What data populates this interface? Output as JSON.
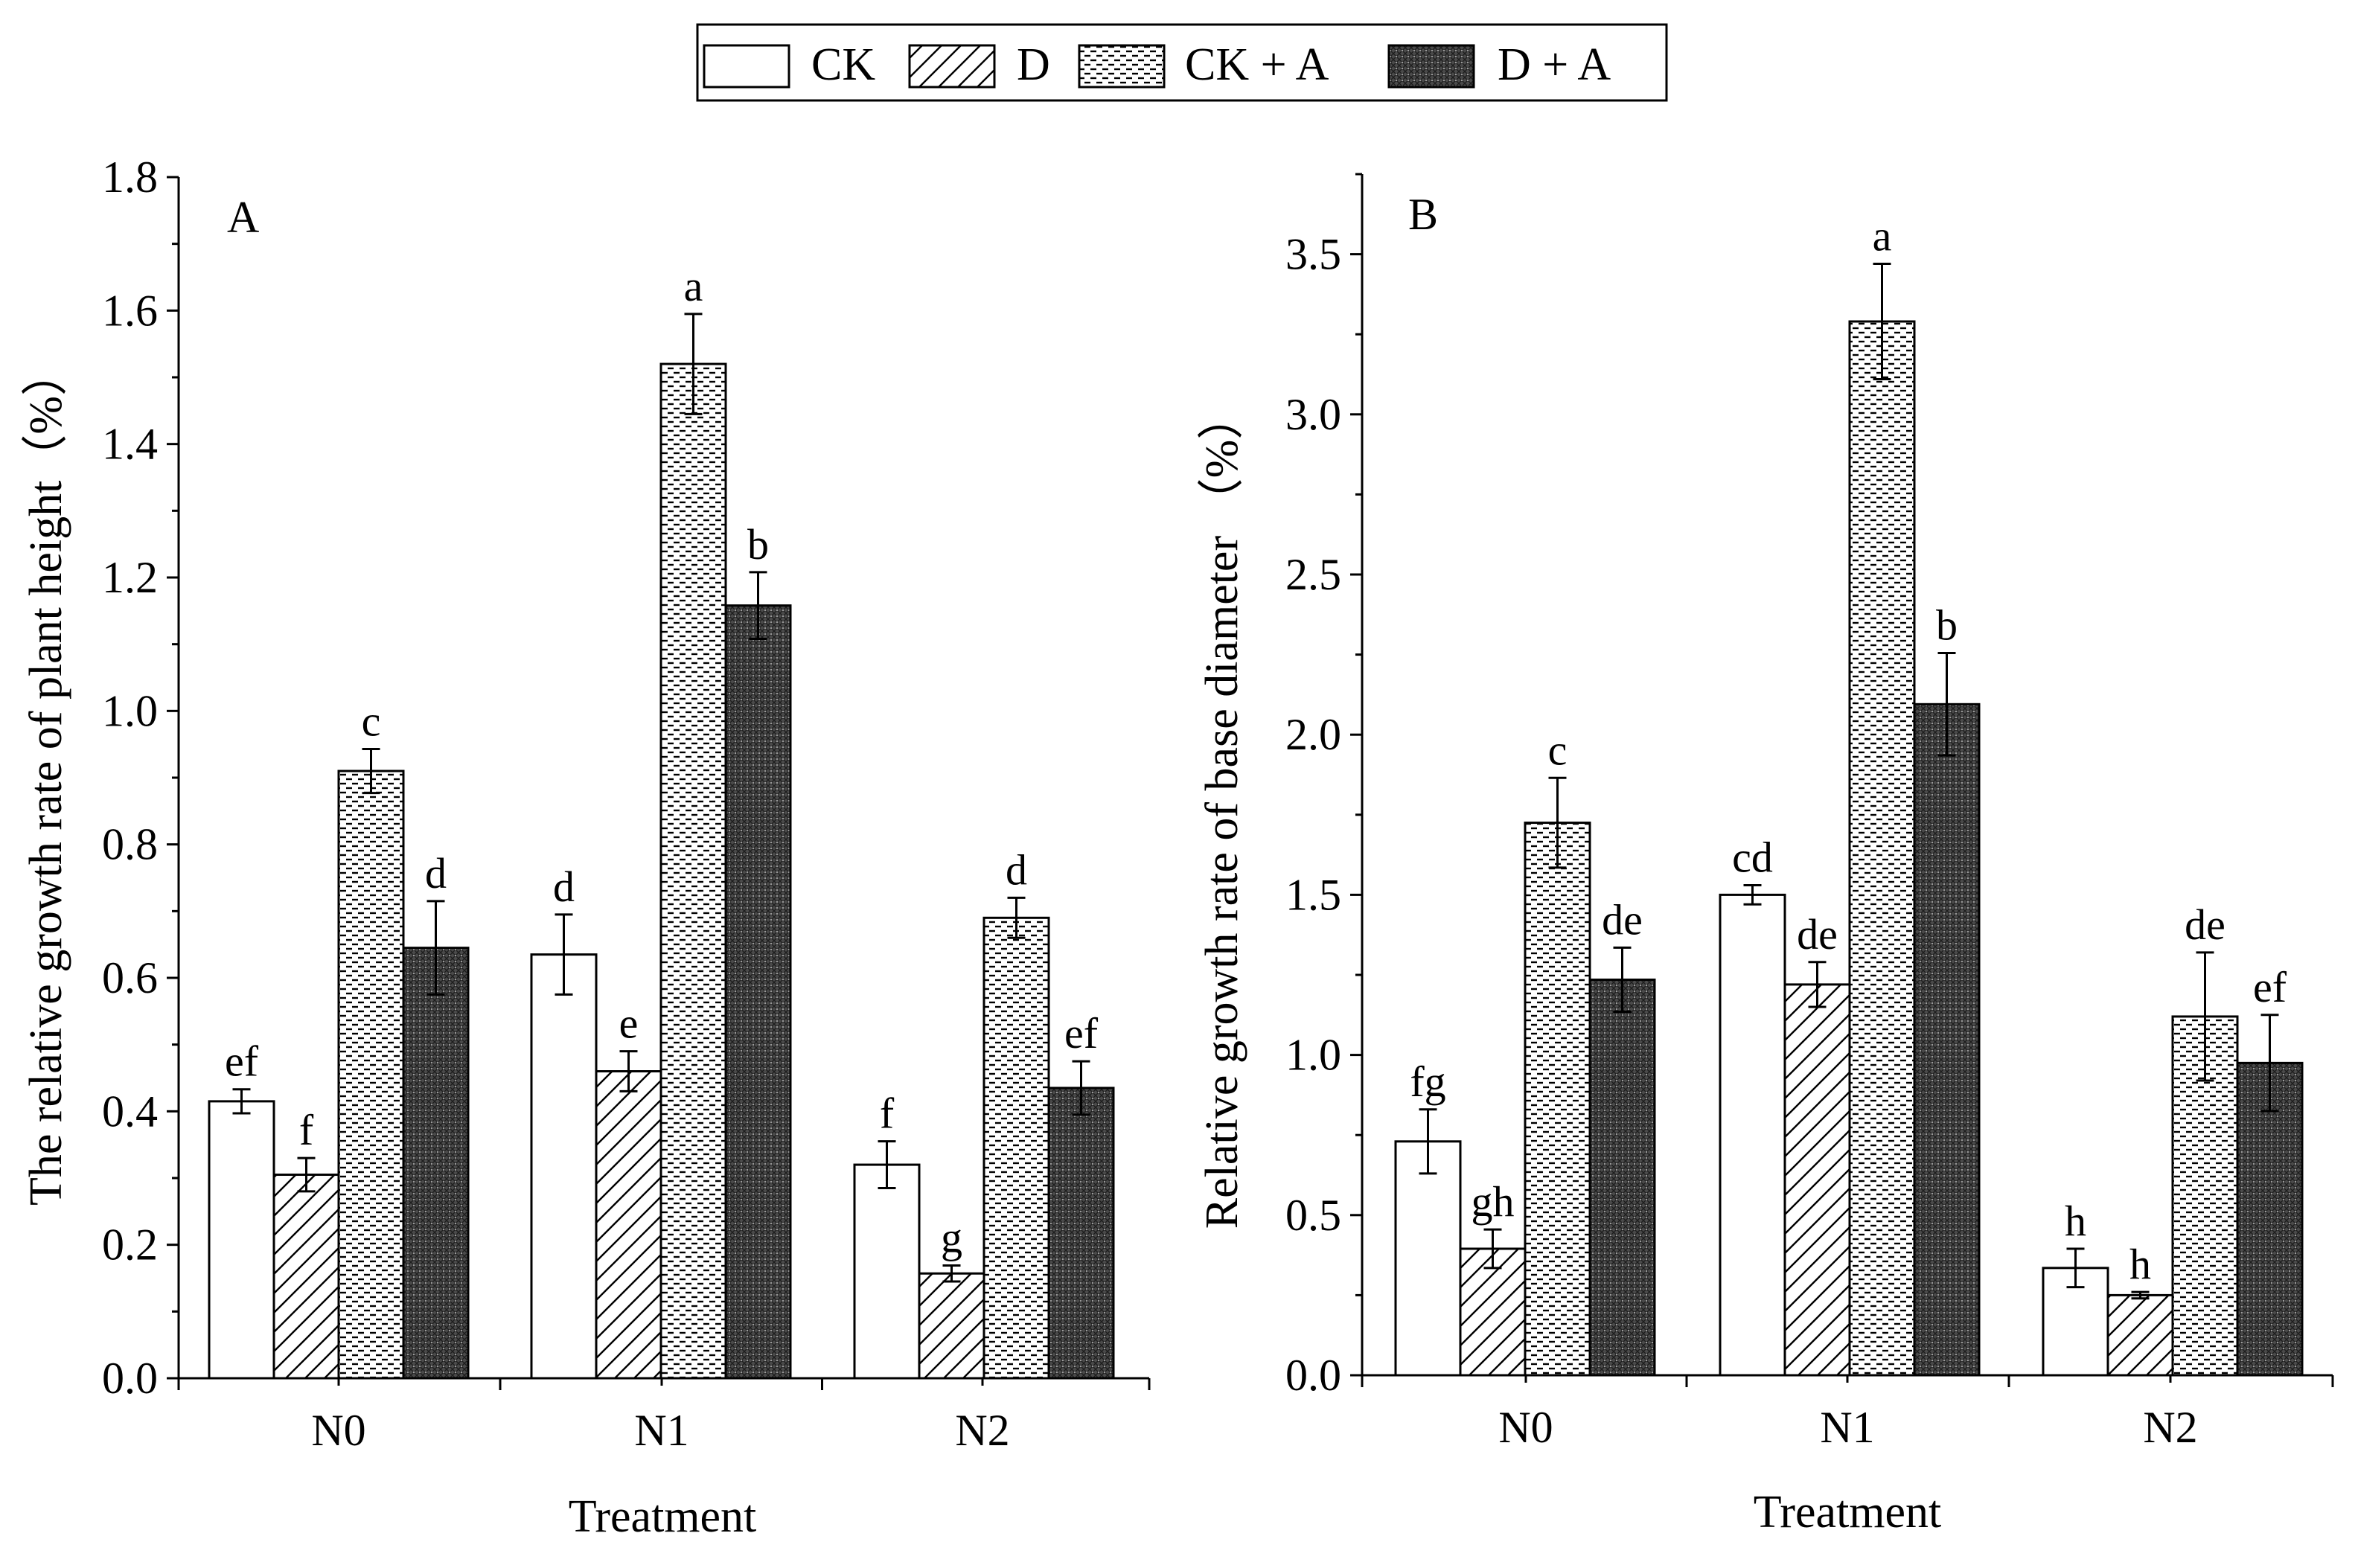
{
  "legend": {
    "entries": [
      {
        "label": "CK",
        "pattern": "white"
      },
      {
        "label": "D",
        "pattern": "hatch"
      },
      {
        "label": "CK + A",
        "pattern": "dash"
      },
      {
        "label": "D + A",
        "pattern": "cross"
      }
    ]
  },
  "chart_data": [
    {
      "type": "bar",
      "panel_label": "A",
      "title": "",
      "xlabel": "Treatment",
      "ylabel": "The  relative growth rate of plant height（%）",
      "ylim": [
        0,
        1.8
      ],
      "yticks": [
        "0.0",
        "0.2",
        "0.4",
        "0.6",
        "0.8",
        "1.0",
        "1.2",
        "1.4",
        "1.6",
        "1.8"
      ],
      "categories": [
        "N0",
        "N1",
        "N2"
      ],
      "series": [
        {
          "name": "CK",
          "values": [
            0.415,
            0.635,
            0.32
          ],
          "errors": [
            0.018,
            0.06,
            0.035
          ],
          "letters": [
            "ef",
            "d",
            "f"
          ]
        },
        {
          "name": "D",
          "values": [
            0.305,
            0.46,
            0.157
          ],
          "errors": [
            0.025,
            0.03,
            0.012
          ],
          "letters": [
            "f",
            "e",
            "g"
          ]
        },
        {
          "name": "CK + A",
          "values": [
            0.91,
            1.52,
            0.69
          ],
          "errors": [
            0.033,
            0.075,
            0.03
          ],
          "letters": [
            "c",
            "a",
            "d"
          ]
        },
        {
          "name": "D + A",
          "values": [
            0.645,
            1.158,
            0.435
          ],
          "errors": [
            0.07,
            0.05,
            0.04
          ],
          "letters": [
            "d",
            "b",
            "ef"
          ]
        }
      ]
    },
    {
      "type": "bar",
      "panel_label": "B",
      "title": "",
      "xlabel": "Treatment",
      "ylabel": "Relative growth rate of base diameter （%）",
      "ylim": [
        0,
        3.75
      ],
      "yticks": [
        "0.0",
        "0.5",
        "1.0",
        "1.5",
        "2.0",
        "2.5",
        "3.0",
        "3.5"
      ],
      "categories": [
        "N0",
        "N1",
        "N2"
      ],
      "series": [
        {
          "name": "CK",
          "values": [
            0.73,
            1.5,
            0.335
          ],
          "errors": [
            0.1,
            0.03,
            0.06
          ],
          "letters": [
            "fg",
            "cd",
            "h"
          ]
        },
        {
          "name": "D",
          "values": [
            0.395,
            1.22,
            0.25
          ],
          "errors": [
            0.06,
            0.07,
            0.01
          ],
          "letters": [
            "gh",
            "de",
            "h"
          ]
        },
        {
          "name": "CK + A",
          "values": [
            1.725,
            3.29,
            1.12
          ],
          "errors": [
            0.14,
            0.18,
            0.2
          ],
          "letters": [
            "c",
            "a",
            "de"
          ]
        },
        {
          "name": "D + A",
          "values": [
            1.235,
            2.095,
            0.975
          ],
          "errors": [
            0.1,
            0.16,
            0.15
          ],
          "letters": [
            "de",
            "b",
            "ef"
          ]
        }
      ]
    }
  ]
}
